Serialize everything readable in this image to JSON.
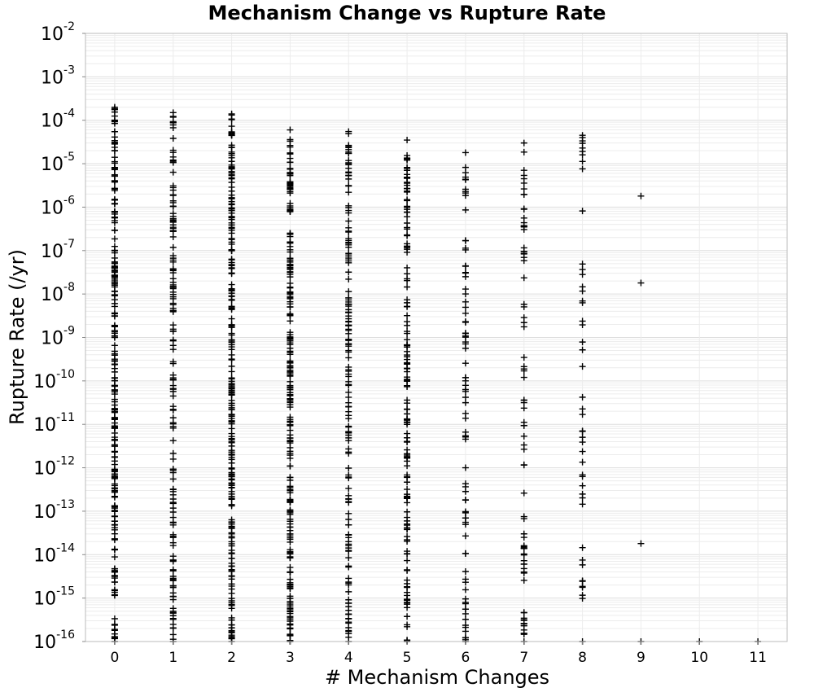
{
  "chart_data": {
    "type": "scatter",
    "title": "Mechanism Change vs Rupture Rate",
    "xlabel": "# Mechanism Changes",
    "ylabel": "Rupture Rate (/yr)",
    "xlim": [
      -0.5,
      11.5
    ],
    "ylim": [
      1e-16,
      0.01
    ],
    "yscale": "log",
    "grid": true,
    "marker": "+",
    "marker_color": "#000000",
    "x_ticks": [
      "0",
      "1",
      "2",
      "3",
      "4",
      "5",
      "6",
      "7",
      "8",
      "9",
      "10",
      "11"
    ],
    "y_ticks": [
      {
        "base": "10",
        "exp": "-2"
      },
      {
        "base": "10",
        "exp": "-3"
      },
      {
        "base": "10",
        "exp": "-4"
      },
      {
        "base": "10",
        "exp": "-5"
      },
      {
        "base": "10",
        "exp": "-6"
      },
      {
        "base": "10",
        "exp": "-7"
      },
      {
        "base": "10",
        "exp": "-8"
      },
      {
        "base": "10",
        "exp": "-9"
      },
      {
        "base": "10",
        "exp": "-10"
      },
      {
        "base": "10",
        "exp": "-11"
      },
      {
        "base": "10",
        "exp": "-12"
      },
      {
        "base": "10",
        "exp": "-13"
      },
      {
        "base": "10",
        "exp": "-14"
      },
      {
        "base": "10",
        "exp": "-15"
      },
      {
        "base": "10",
        "exp": "-16"
      }
    ],
    "columns": [
      {
        "x": 0,
        "ymax": 0.0002,
        "ymin": 1e-16,
        "density": "very-dense"
      },
      {
        "x": 1,
        "ymax": 0.00015,
        "ymin": 1e-16,
        "density": "dense"
      },
      {
        "x": 2,
        "ymax": 0.00014,
        "ymin": 1e-16,
        "density": "very-dense"
      },
      {
        "x": 3,
        "ymax": 6e-05,
        "ymin": 1e-16,
        "density": "very-dense"
      },
      {
        "x": 4,
        "ymax": 5.5e-05,
        "ymin": 1e-16,
        "density": "dense"
      },
      {
        "x": 5,
        "ymax": 3.5e-05,
        "ymin": 1e-16,
        "density": "dense"
      },
      {
        "x": 6,
        "ymax": 1.8e-05,
        "ymin": 1e-16,
        "density": "medium"
      },
      {
        "x": 7,
        "ymax": 3e-05,
        "ymin": 1e-16,
        "density": "medium"
      },
      {
        "x": 8,
        "ymax": 4.5e-05,
        "ymin": 1e-16,
        "density": "sparse"
      }
    ],
    "points": [
      {
        "x": 9,
        "y": 1.8e-06
      },
      {
        "x": 9,
        "y": 1.8e-08
      },
      {
        "x": 9,
        "y": 1.8e-14
      },
      {
        "x": 9,
        "y": 1e-16
      },
      {
        "x": 10,
        "y": 1e-16
      },
      {
        "x": 11,
        "y": 1e-16
      }
    ]
  }
}
